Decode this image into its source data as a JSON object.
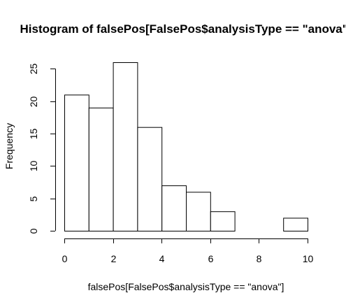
{
  "chart_data": {
    "type": "bar",
    "title": "Histogram of falsePos[FalsePos$analysisType == \"anova\"]",
    "xlabel": "falsePos[FalsePos$analysisType == \"anova\"]",
    "ylabel": "Frequency",
    "bins": [
      {
        "from": 0,
        "to": 1,
        "count": 21
      },
      {
        "from": 1,
        "to": 2,
        "count": 19
      },
      {
        "from": 2,
        "to": 3,
        "count": 26
      },
      {
        "from": 3,
        "to": 4,
        "count": 16
      },
      {
        "from": 4,
        "to": 5,
        "count": 7
      },
      {
        "from": 5,
        "to": 6,
        "count": 6
      },
      {
        "from": 6,
        "to": 7,
        "count": 3
      },
      {
        "from": 7,
        "to": 8,
        "count": 0
      },
      {
        "from": 8,
        "to": 9,
        "count": 0
      },
      {
        "from": 9,
        "to": 10,
        "count": 2
      }
    ],
    "xlim": [
      0,
      10
    ],
    "ylim": [
      0,
      26
    ],
    "x_ticks": [
      "0",
      "2",
      "4",
      "6",
      "8",
      "10"
    ],
    "y_ticks": [
      "0",
      "5",
      "10",
      "15",
      "20",
      "25"
    ],
    "grid": false,
    "legend": "none"
  }
}
